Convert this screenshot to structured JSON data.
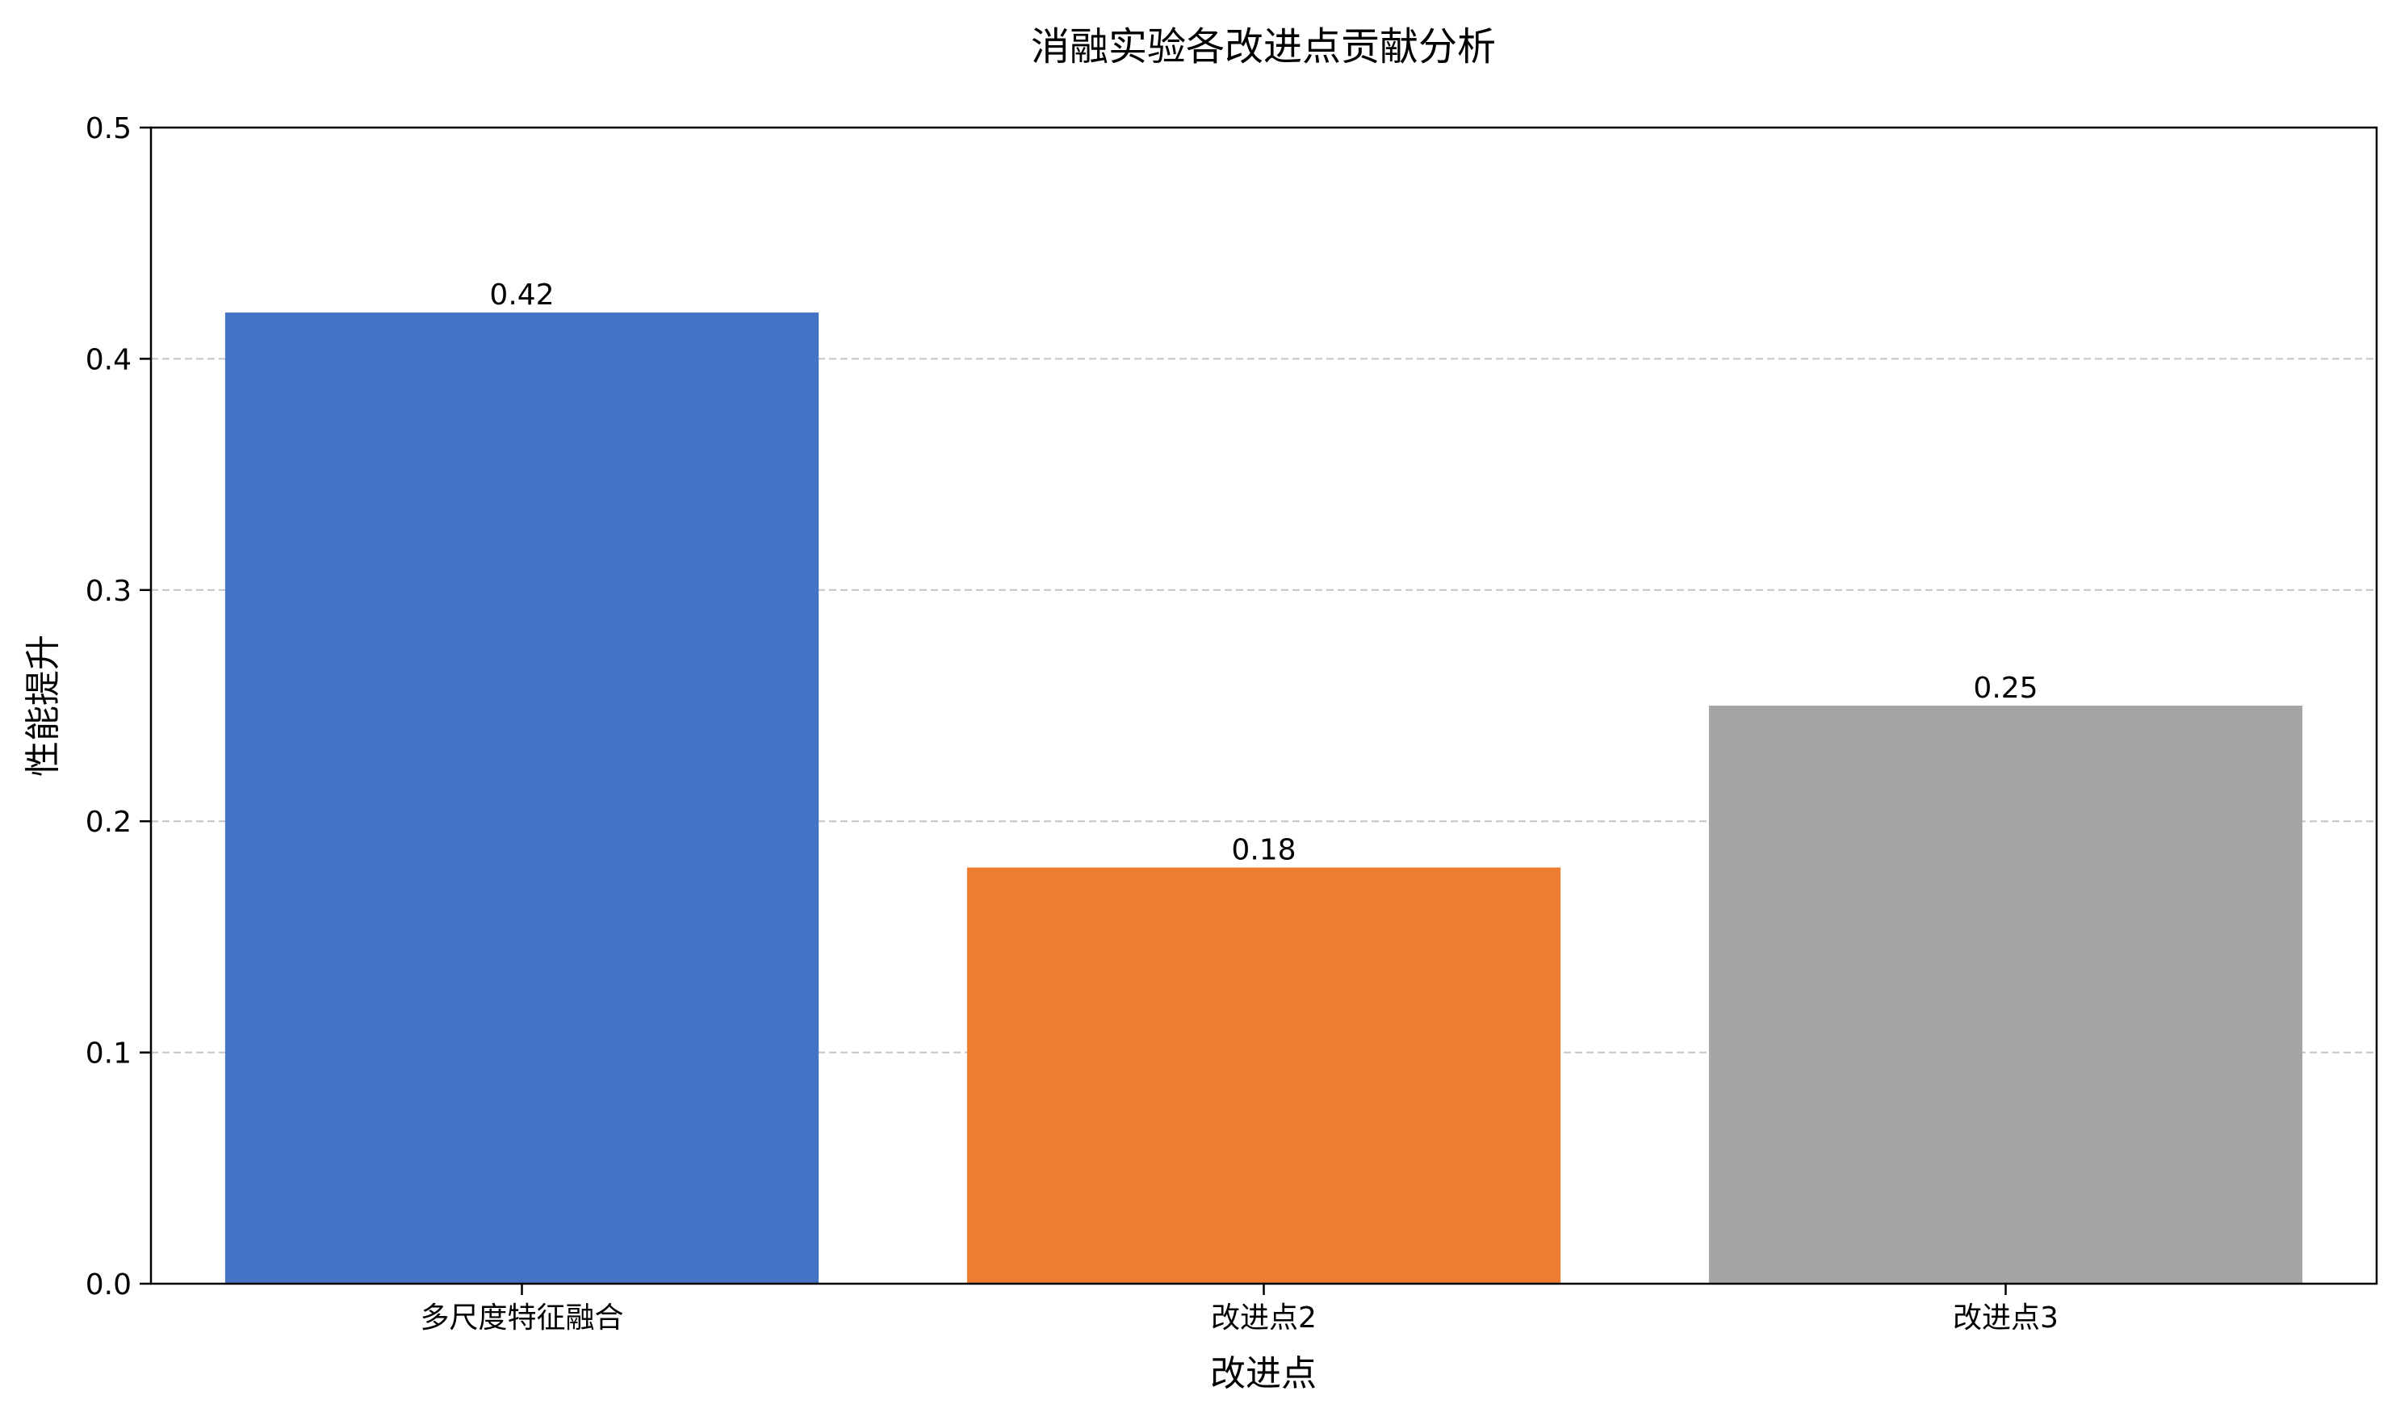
{
  "chart_data": {
    "type": "bar",
    "title": "消融实验各改进点贡献分析",
    "xlabel": "改进点",
    "ylabel": "性能提升",
    "categories": [
      "多尺度特征融合",
      "改进点2",
      "改进点3"
    ],
    "values": [
      0.42,
      0.18,
      0.25
    ],
    "value_labels": [
      "0.42",
      "0.18",
      "0.25"
    ],
    "colors": [
      "#4472C4",
      "#ED7D31",
      "#A5A5A5"
    ],
    "ylim": [
      0,
      0.5
    ],
    "yticks": [
      0.0,
      0.1,
      0.2,
      0.3,
      0.4,
      0.5
    ],
    "ytick_labels": [
      "0.0",
      "0.1",
      "0.2",
      "0.3",
      "0.4",
      "0.5"
    ],
    "grid": "y-dashed",
    "legend": "none"
  }
}
